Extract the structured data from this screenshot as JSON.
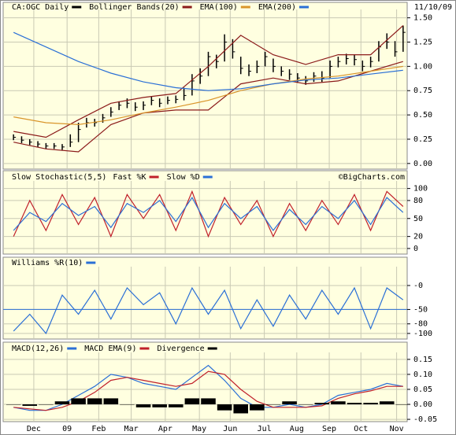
{
  "chart_data": [
    {
      "type": "ohlc",
      "title": "CA:OGC Daily",
      "color": "#000000",
      "date": "11/10/09",
      "xlim": [
        -0.5,
        48.5
      ],
      "x": [
        0,
        1,
        2,
        3,
        4,
        5,
        6,
        7,
        8,
        9,
        10,
        11,
        12,
        13,
        14,
        15,
        16,
        17,
        18,
        19,
        20,
        21,
        22,
        23,
        24,
        25,
        26,
        27,
        28,
        29,
        30,
        31,
        32,
        33,
        34,
        35,
        36,
        37,
        38,
        39,
        40,
        41,
        42,
        43,
        44,
        45,
        46,
        47,
        48
      ],
      "high": [
        0.3,
        0.28,
        0.25,
        0.23,
        0.21,
        0.21,
        0.2,
        0.3,
        0.42,
        0.47,
        0.46,
        0.51,
        0.58,
        0.64,
        0.67,
        0.63,
        0.64,
        0.69,
        0.67,
        0.69,
        0.7,
        0.78,
        0.92,
        0.98,
        1.15,
        1.12,
        1.33,
        1.28,
        1.1,
        1.02,
        1.06,
        1.15,
        1.08,
        1.0,
        0.97,
        0.93,
        0.9,
        0.94,
        0.95,
        1.06,
        1.1,
        1.13,
        1.12,
        1.06,
        1.1,
        1.26,
        1.34,
        1.26,
        1.42
      ],
      "low": [
        0.24,
        0.21,
        0.19,
        0.17,
        0.15,
        0.15,
        0.14,
        0.17,
        0.22,
        0.37,
        0.38,
        0.42,
        0.48,
        0.55,
        0.57,
        0.54,
        0.55,
        0.6,
        0.58,
        0.61,
        0.62,
        0.65,
        0.7,
        0.82,
        0.9,
        0.98,
        1.05,
        1.08,
        0.92,
        0.9,
        0.93,
        1.0,
        0.94,
        0.9,
        0.86,
        0.83,
        0.81,
        0.84,
        0.84,
        0.88,
        0.99,
        1.02,
        1.01,
        0.95,
        0.99,
        1.05,
        1.18,
        1.1,
        1.15
      ],
      "close": [
        0.27,
        0.24,
        0.22,
        0.2,
        0.18,
        0.18,
        0.17,
        0.22,
        0.35,
        0.42,
        0.42,
        0.47,
        0.53,
        0.6,
        0.62,
        0.58,
        0.6,
        0.65,
        0.62,
        0.65,
        0.66,
        0.7,
        0.85,
        0.9,
        1.1,
        1.05,
        1.25,
        1.15,
        0.98,
        0.95,
        1.0,
        1.1,
        1.0,
        0.95,
        0.92,
        0.88,
        0.85,
        0.9,
        0.88,
        1.0,
        1.05,
        1.08,
        1.07,
        1.0,
        1.05,
        1.2,
        1.25,
        1.15,
        1.35
      ],
      "series": [
        {
          "name": "Bollinger Bands(20)",
          "color": "#8b1a1a",
          "x": [
            0,
            4,
            8,
            12,
            16,
            20,
            24,
            28,
            32,
            36,
            40,
            44,
            48
          ],
          "values": [
            0.33,
            0.27,
            0.45,
            0.62,
            0.68,
            0.72,
            1.0,
            1.32,
            1.12,
            1.02,
            1.12,
            1.12,
            1.42
          ]
        },
        {
          "color": "#8b1a1a",
          "x": [
            0,
            4,
            8,
            12,
            16,
            20,
            24,
            28,
            32,
            36,
            40,
            44,
            48
          ],
          "values": [
            0.22,
            0.15,
            0.12,
            0.4,
            0.52,
            0.55,
            0.55,
            0.82,
            0.88,
            0.82,
            0.85,
            0.95,
            1.05
          ]
        },
        {
          "name": "EMA(100)",
          "color": "#d9952b",
          "x": [
            0,
            4,
            8,
            12,
            16,
            20,
            24,
            28,
            32,
            36,
            40,
            44,
            48
          ],
          "values": [
            0.48,
            0.42,
            0.4,
            0.45,
            0.52,
            0.58,
            0.65,
            0.75,
            0.82,
            0.87,
            0.9,
            0.95,
            1.0
          ]
        },
        {
          "name": "EMA(200)",
          "color": "#2a6fd6",
          "x": [
            0,
            4,
            8,
            12,
            16,
            20,
            24,
            28,
            32,
            36,
            40,
            44,
            48
          ],
          "values": [
            1.35,
            1.2,
            1.05,
            0.93,
            0.84,
            0.78,
            0.75,
            0.77,
            0.82,
            0.86,
            0.88,
            0.92,
            0.96
          ]
        }
      ],
      "ylim": [
        -0.05,
        1.57
      ],
      "yticks": [
        {
          "value": 0,
          "label": "0.00"
        },
        0.25,
        {
          "value": 0.5,
          "label": "0.50"
        },
        0.75,
        {
          "value": 1,
          "label": "1.00"
        },
        1.25,
        {
          "value": 1.5,
          "label": "1.50"
        }
      ],
      "grid": true
    },
    {
      "type": "line",
      "title": "Slow Stochastic(5,5)",
      "credit": "©BigCharts.com",
      "xlim": [
        -0.5,
        48.5
      ],
      "series": [
        {
          "name": "Fast %K",
          "color": "#c0202a",
          "x": [
            0,
            2,
            4,
            6,
            8,
            10,
            12,
            14,
            16,
            18,
            20,
            22,
            24,
            26,
            28,
            30,
            32,
            34,
            36,
            38,
            40,
            42,
            44,
            46,
            48
          ],
          "values": [
            20,
            80,
            30,
            90,
            40,
            85,
            20,
            90,
            50,
            90,
            30,
            95,
            20,
            85,
            40,
            80,
            20,
            75,
            30,
            80,
            40,
            90,
            30,
            95,
            70
          ]
        },
        {
          "name": "Slow %D",
          "color": "#2a6fd6",
          "x": [
            0,
            2,
            4,
            6,
            8,
            10,
            12,
            14,
            16,
            18,
            20,
            22,
            24,
            26,
            28,
            30,
            32,
            34,
            36,
            38,
            40,
            42,
            44,
            46,
            48
          ],
          "values": [
            30,
            60,
            45,
            75,
            55,
            70,
            35,
            75,
            60,
            80,
            45,
            85,
            35,
            75,
            50,
            70,
            30,
            65,
            40,
            70,
            50,
            80,
            40,
            85,
            60
          ]
        }
      ],
      "ylim": [
        -8,
        110
      ],
      "yticks": [
        0,
        20,
        50,
        80,
        100
      ],
      "grid": true
    },
    {
      "type": "line",
      "xlim": [
        -0.5,
        48.5
      ],
      "hline": -50,
      "series": [
        {
          "name": "Williams %R(10)",
          "color": "#2a6fd6",
          "x": [
            0,
            2,
            4,
            6,
            8,
            10,
            12,
            14,
            16,
            18,
            20,
            22,
            24,
            26,
            28,
            30,
            32,
            34,
            36,
            38,
            40,
            42,
            44,
            46,
            48
          ],
          "values": [
            -95,
            -60,
            -100,
            -20,
            -60,
            -10,
            -70,
            -5,
            -40,
            -15,
            -80,
            -5,
            -60,
            -10,
            -90,
            -30,
            -85,
            -20,
            -70,
            -10,
            -60,
            -5,
            -90,
            -5,
            -30
          ]
        }
      ],
      "ylim": [
        -110,
        36
      ],
      "yticks": [
        -100,
        -80,
        -50,
        {
          "value": 0,
          "label": "-0"
        }
      ],
      "grid": true
    },
    {
      "type": "line",
      "xlim": [
        -0.5,
        48.5
      ],
      "series": [
        {
          "name": "MACD(12,26)",
          "color": "#2a6fd6",
          "x": [
            0,
            2,
            4,
            6,
            8,
            10,
            12,
            14,
            16,
            18,
            20,
            22,
            24,
            26,
            28,
            30,
            32,
            34,
            36,
            38,
            40,
            42,
            44,
            46,
            48
          ],
          "values": [
            -0.01,
            -0.02,
            -0.02,
            0.0,
            0.03,
            0.06,
            0.1,
            0.09,
            0.07,
            0.06,
            0.05,
            0.09,
            0.13,
            0.08,
            0.02,
            -0.01,
            -0.01,
            0.0,
            -0.01,
            0.0,
            0.03,
            0.04,
            0.05,
            0.07,
            0.06
          ]
        },
        {
          "name": "MACD EMA(9)",
          "color": "#c0202a",
          "x": [
            0,
            2,
            4,
            6,
            8,
            10,
            12,
            14,
            16,
            18,
            20,
            22,
            24,
            26,
            28,
            30,
            32,
            34,
            36,
            38,
            40,
            42,
            44,
            46,
            48
          ],
          "values": [
            -0.01,
            -0.015,
            -0.02,
            -0.01,
            0.01,
            0.04,
            0.08,
            0.09,
            0.08,
            0.07,
            0.06,
            0.07,
            0.11,
            0.1,
            0.05,
            0.01,
            -0.01,
            -0.01,
            -0.01,
            -0.005,
            0.02,
            0.035,
            0.045,
            0.06,
            0.06
          ]
        },
        {
          "name": "Divergence",
          "color": "#000000",
          "kind": "bar",
          "x": [
            0,
            2,
            4,
            6,
            8,
            10,
            12,
            14,
            16,
            18,
            20,
            22,
            24,
            26,
            28,
            30,
            32,
            34,
            36,
            38,
            40,
            42,
            44,
            46,
            48
          ],
          "values": [
            0,
            -0.005,
            0,
            0.01,
            0.02,
            0.02,
            0.02,
            0,
            -0.01,
            -0.01,
            -0.01,
            0.02,
            0.02,
            -0.02,
            -0.03,
            -0.02,
            0,
            0.01,
            0,
            0.005,
            0.01,
            0.005,
            0.005,
            0.01,
            0
          ]
        }
      ],
      "ylim": [
        -0.055,
        0.168
      ],
      "yticks": [
        -0.05,
        {
          "value": 0,
          "label": "0.00"
        },
        0.05,
        {
          "value": 0.1,
          "label": "0.10"
        },
        0.15
      ],
      "xticks": [
        {
          "value": 2.5,
          "label": "Dec"
        },
        {
          "value": 6.6,
          "label": "09"
        },
        {
          "value": 10.5,
          "label": "Feb"
        },
        {
          "value": 14.5,
          "label": "Mar"
        },
        {
          "value": 18.7,
          "label": "Apr"
        },
        {
          "value": 22.9,
          "label": "May"
        },
        {
          "value": 26.7,
          "label": "Jun"
        },
        {
          "value": 30.9,
          "label": "Jul"
        },
        {
          "value": 34.9,
          "label": "Aug"
        },
        {
          "value": 38.9,
          "label": "Sep"
        },
        {
          "value": 42.8,
          "label": "Oct"
        },
        {
          "value": 47.2,
          "label": "Nov"
        }
      ],
      "grid": true
    }
  ]
}
